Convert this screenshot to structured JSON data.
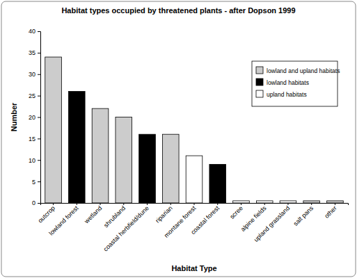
{
  "chart_data": {
    "type": "bar",
    "title": "Habitat types occupied by threatened plants - after Dopson 1999",
    "x_label": "Habitat Type",
    "y_label": "Number",
    "categories": [
      "outcrop",
      "lowland forest",
      "wetland",
      "shrubland",
      "coastal herbfield/dune",
      "riparian",
      "montane forest",
      "coastal forest",
      "scree",
      "alpine fields",
      "upland grassland",
      "salt pans",
      "other"
    ],
    "series": [
      {
        "name": "lowland and upland habitats",
        "color": "#cccccc",
        "values": [
          34,
          null,
          22,
          20,
          null,
          16,
          null,
          null,
          null,
          null,
          null,
          0.5,
          0.5
        ]
      },
      {
        "name": "lowland habitats",
        "color": "#000000",
        "values": [
          null,
          26,
          null,
          null,
          16,
          null,
          null,
          9,
          null,
          null,
          null,
          null,
          null
        ]
      },
      {
        "name": "upland habitats",
        "color": "#ffffff",
        "values": [
          null,
          null,
          null,
          null,
          null,
          null,
          11,
          null,
          0.5,
          0.5,
          0.5,
          null,
          null
        ]
      }
    ],
    "ylim": [
      0,
      40
    ],
    "yticks": [
      0,
      5,
      10,
      15,
      20,
      25,
      30,
      35,
      40
    ],
    "grid": false,
    "legend": "upper right"
  }
}
